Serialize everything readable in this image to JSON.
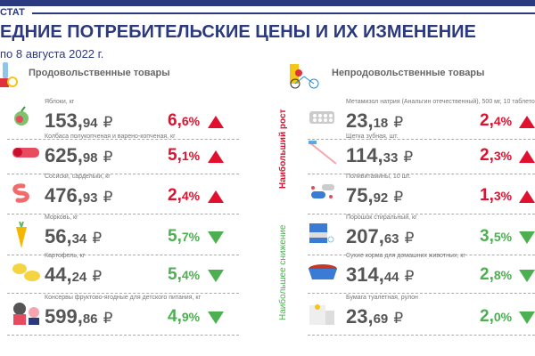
{
  "header": {
    "brand": "СТАТ",
    "title": "ЕДНИЕ ПОТРЕБИТЕЛЬСКИЕ ЦЕНЫ И ИХ ИЗМЕНЕНИЕ",
    "date": "по 8 августа 2022 г."
  },
  "colors": {
    "brand": "#2b3a7e",
    "up": "#e0102e",
    "down": "#4caf50"
  },
  "food": {
    "title": "Продовольственные товары",
    "items": [
      {
        "name": "Яблоки, кг",
        "int": "153,",
        "dec": "94",
        "cur": "₽",
        "pint": "6,",
        "pdec": "6",
        "psuf": "%",
        "dir": "up",
        "icon": "apple-icon"
      },
      {
        "name": "Колбаса полукопченая  и варено-копченая, кг",
        "int": "625,",
        "dec": "98",
        "cur": "₽",
        "pint": "5,",
        "pdec": "1",
        "psuf": "%",
        "dir": "up",
        "icon": "sausage-icon"
      },
      {
        "name": "Сосиски, сардельки, кг",
        "int": "476,",
        "dec": "93",
        "cur": "₽",
        "pint": "2,",
        "pdec": "4",
        "psuf": "%",
        "dir": "up",
        "icon": "frankfurter-icon"
      },
      {
        "name": "Морковь, кг",
        "int": "56,",
        "dec": "34",
        "cur": "₽",
        "pint": "5,",
        "pdec": "7",
        "psuf": "%",
        "dir": "down",
        "icon": "carrot-icon"
      },
      {
        "name": "Картофель,  кг",
        "int": "44,",
        "dec": "24",
        "cur": "₽",
        "pint": "5,",
        "pdec": "4",
        "psuf": "%",
        "dir": "down",
        "icon": "potato-icon"
      },
      {
        "name": "Консервы фруктово-ягодные  для детского питания, кг",
        "int": "599,",
        "dec": "86",
        "cur": "₽",
        "pint": "4,",
        "pdec": "9",
        "psuf": "%",
        "dir": "down",
        "icon": "baby-food-icon"
      }
    ]
  },
  "nonfood": {
    "title": "Непродовольственные товары",
    "growth_label": "Наибольший рост",
    "decline_label": "Наибольшее снижение",
    "items": [
      {
        "name": "Метамизол  натрия (Анальгин отечественный),  500 мг, 10 таблеток",
        "int": "23,",
        "dec": "18",
        "cur": "₽",
        "pint": "2,",
        "pdec": "4",
        "psuf": "%",
        "dir": "up",
        "icon": "pills-blister-icon"
      },
      {
        "name": "Щетка  зубная, шт.",
        "int": "114,",
        "dec": "33",
        "cur": "₽",
        "pint": "2,",
        "pdec": "3",
        "psuf": "%",
        "dir": "up",
        "icon": "toothbrush-icon"
      },
      {
        "name": "Поливитамины,  10 шт.",
        "int": "75,",
        "dec": "92",
        "cur": "₽",
        "pint": "1,",
        "pdec": "3",
        "psuf": "%",
        "dir": "up",
        "icon": "vitamins-icon"
      },
      {
        "name": "Порошок  стиральный,  кг",
        "int": "207,",
        "dec": "63",
        "cur": "₽",
        "pint": "3,",
        "pdec": "5",
        "psuf": "%",
        "dir": "down",
        "icon": "detergent-icon"
      },
      {
        "name": "Сухие корма  для домашних животных,  кг",
        "int": "314,",
        "dec": "44",
        "cur": "₽",
        "pint": "2,",
        "pdec": "8",
        "psuf": "%",
        "dir": "down",
        "icon": "pet-food-icon"
      },
      {
        "name": "Бумага туалетная,  рулон",
        "int": "23,",
        "dec": "69",
        "cur": "₽",
        "pint": "2,",
        "pdec": "0",
        "psuf": "%",
        "dir": "down",
        "icon": "toilet-paper-icon"
      }
    ]
  }
}
